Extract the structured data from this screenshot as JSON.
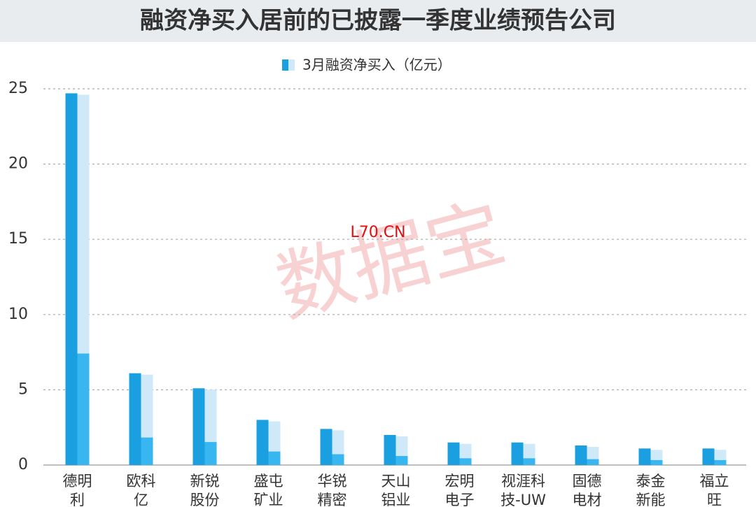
{
  "chart_data": {
    "type": "bar",
    "title": "融资净买入居前的已披露一季度业绩预告公司",
    "categories": [
      "德明利",
      "欧科亿",
      "新锐股份",
      "盛屯矿业",
      "华锐精密",
      "天山铝业",
      "宏明电子",
      "视涯科技-UW",
      "固德电材",
      "泰金新能",
      "福立旺"
    ],
    "series": [
      {
        "name": "3月融资净买入（亿元）",
        "color": "#1a9fe0",
        "values": [
          24.7,
          6.1,
          5.1,
          3.0,
          2.4,
          2.0,
          1.5,
          1.5,
          1.3,
          1.1,
          1.1
        ]
      }
    ],
    "ylim": [
      0,
      25
    ],
    "yticks": [
      0,
      5,
      10,
      15,
      20,
      25
    ],
    "grid": true,
    "watermarks": [
      "数据宝",
      "L70.CN"
    ]
  }
}
